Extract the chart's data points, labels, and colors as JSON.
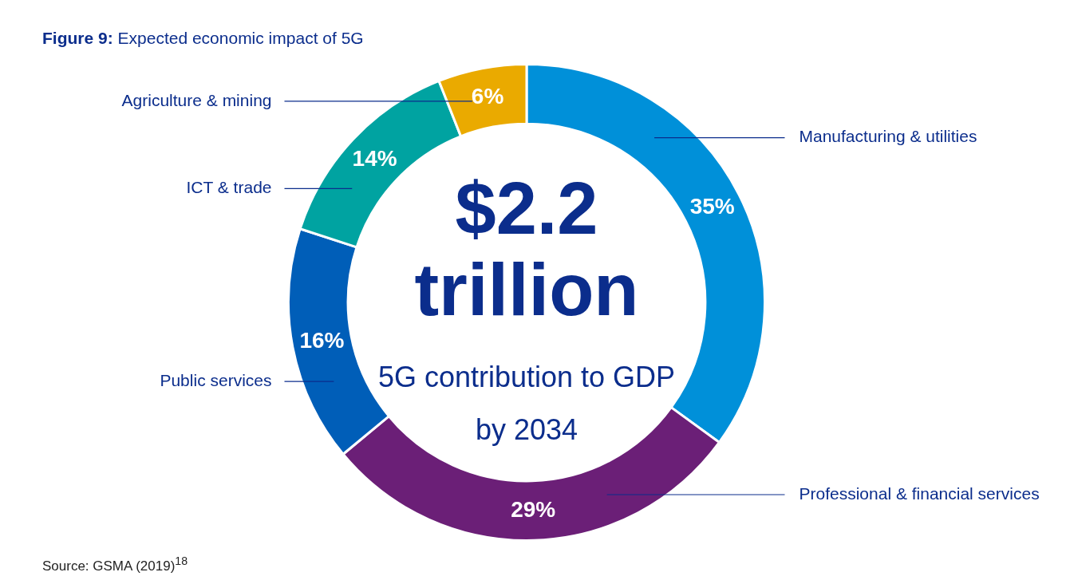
{
  "chart_data": {
    "type": "donut",
    "title": "Figure 9: Expected economic impact of 5G",
    "categories": [
      "Manufacturing & utilities",
      "Professional & financial services",
      "Public services",
      "ICT & trade",
      "Agriculture & mining"
    ],
    "values": [
      35,
      29,
      16,
      14,
      6
    ],
    "colors": [
      "#0090d9",
      "#6b1f77",
      "#005eb8",
      "#00a3a1",
      "#eaaa00"
    ],
    "value_labels": [
      "35%",
      "29%",
      "16%",
      "14%",
      "6%"
    ],
    "legend": false,
    "annotations": [
      "$2.2 trillion",
      "5G contribution to GDP by 2034",
      "Source: GSMA (2019)$^{18}$"
    ]
  }
}
